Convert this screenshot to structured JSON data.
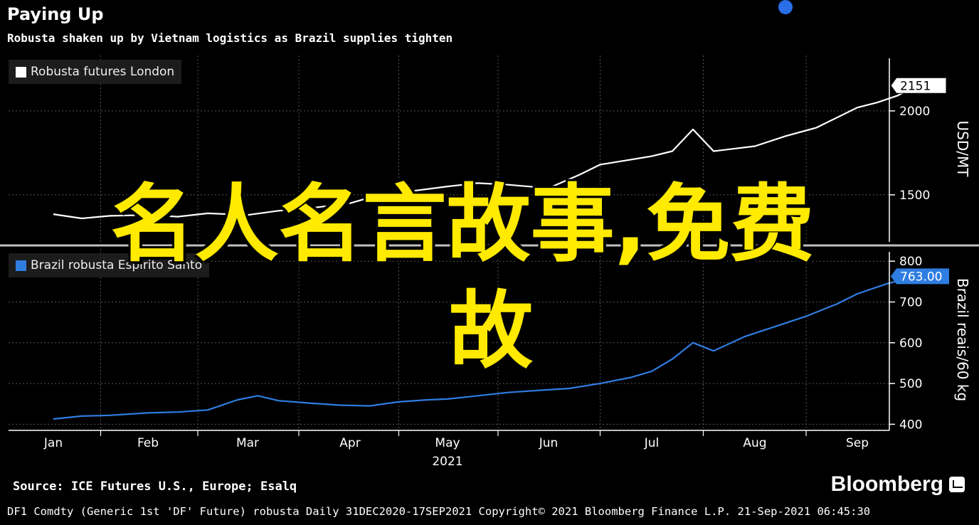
{
  "title": "Paying Up",
  "subtitle": "Robusta shaken up by Vietnam logistics as Brazil supplies tighten",
  "overlay_text": {
    "line1": "名人名言故事,免费",
    "line2": "故"
  },
  "source": "Source: ICE Futures U.S., Europe; Esalq",
  "brand": "Bloomberg",
  "footer": "DF1 Comdty (Generic 1st 'DF' Future) robusta  Daily 31DEC2020-17SEP2021  Copyright© 2021 Bloomberg Finance L.P.  21-Sep-2021 06:45:30",
  "colors": {
    "top_series": "#ffffff",
    "bottom_series": "#2f7de1",
    "accent_dot": "#2a6ee8",
    "overlay": "#ffea00"
  },
  "chart_data": [
    {
      "type": "line",
      "legend": "Robusta futures London",
      "ylabel": "USD/MT",
      "ylim": [
        1220,
        2330
      ],
      "yticks": [
        1500,
        2000
      ],
      "last_value_label": "2151",
      "x_months": [
        "Jan",
        "Feb",
        "Mar",
        "Apr",
        "May",
        "Jun",
        "Jul",
        "Aug",
        "Sep"
      ],
      "x_year": "2021",
      "series": [
        {
          "name": "Robusta futures London",
          "x": [
            0.0,
            0.3,
            0.6,
            1.0,
            1.3,
            1.6,
            2.0,
            2.3,
            2.6,
            3.0,
            3.3,
            3.6,
            4.0,
            4.3,
            4.6,
            5.0,
            5.3,
            5.5,
            5.7,
            6.0,
            6.2,
            6.4,
            6.6,
            7.0,
            7.3,
            7.6,
            8.0,
            8.2,
            8.4,
            8.6
          ],
          "y": [
            1385,
            1360,
            1375,
            1380,
            1370,
            1390,
            1380,
            1405,
            1420,
            1450,
            1500,
            1520,
            1550,
            1570,
            1560,
            1540,
            1620,
            1680,
            1700,
            1730,
            1760,
            1890,
            1760,
            1790,
            1850,
            1900,
            2020,
            2050,
            2090,
            2151
          ]
        }
      ]
    },
    {
      "type": "line",
      "legend": "Brazil robusta Espirito Santo",
      "ylabel": "Brazil reais/60 kg",
      "ylim": [
        385,
        830
      ],
      "yticks": [
        400,
        500,
        600,
        700,
        800
      ],
      "last_value_label": "763.00",
      "x_months": [
        "Jan",
        "Feb",
        "Mar",
        "Apr",
        "May",
        "Jun",
        "Jul",
        "Aug",
        "Sep"
      ],
      "x_year": "2021",
      "series": [
        {
          "name": "Brazil robusta Espirito Santo",
          "x": [
            0.0,
            0.3,
            0.6,
            1.0,
            1.3,
            1.6,
            1.9,
            2.1,
            2.3,
            2.6,
            2.9,
            3.2,
            3.5,
            3.8,
            4.0,
            4.3,
            4.6,
            4.9,
            5.2,
            5.5,
            5.8,
            6.0,
            6.2,
            6.4,
            6.6,
            6.9,
            7.2,
            7.5,
            7.8,
            8.0,
            8.3,
            8.6
          ],
          "y": [
            413,
            420,
            422,
            428,
            430,
            435,
            460,
            470,
            458,
            452,
            447,
            445,
            455,
            460,
            462,
            470,
            478,
            483,
            488,
            500,
            515,
            530,
            560,
            600,
            580,
            615,
            640,
            665,
            695,
            720,
            745,
            763
          ]
        }
      ]
    }
  ]
}
